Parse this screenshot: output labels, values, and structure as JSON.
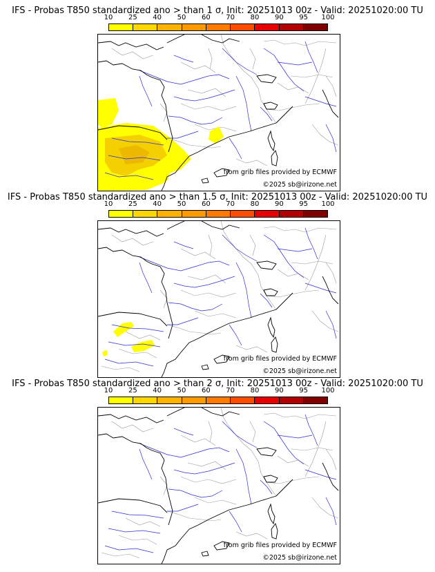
{
  "colorbar": {
    "ticks": [
      "10",
      "25",
      "40",
      "50",
      "60",
      "70",
      "80",
      "90",
      "95",
      "100"
    ],
    "colors": [
      "#ffff00",
      "#ffd700",
      "#ffb300",
      "#ff9900",
      "#ff7a00",
      "#ff4d00",
      "#e60000",
      "#b30000",
      "#800000"
    ]
  },
  "panels": [
    {
      "title": "IFS - Probas T850  standardized ano > than 1 σ, Init: 20251013 00z - Valid: 20251020:00 TU",
      "source_credit": "from grib files provided by ECMWF",
      "copyright": "©2025 sb@irizone.net"
    },
    {
      "title": "IFS - Probas T850  standardized ano > than 1.5 σ, Init: 20251013 00z - Valid: 20251020:00 TU",
      "source_credit": "from grib files provided by ECMWF",
      "copyright": "©2025 sb@irizone.net"
    },
    {
      "title": "IFS - Probas T850  standardized ano > than 2 σ, Init: 20251013 00z - Valid: 20251020:00 TU",
      "source_credit": "from grib files provided by ECMWF",
      "copyright": "©2025 sb@irizone.net"
    }
  ],
  "colors": {
    "coast": "#000000",
    "rivers": "#2b2bd8",
    "borders": "#9a9a9a",
    "shading": "#ffff00",
    "shading_dark": "#e8b400"
  }
}
